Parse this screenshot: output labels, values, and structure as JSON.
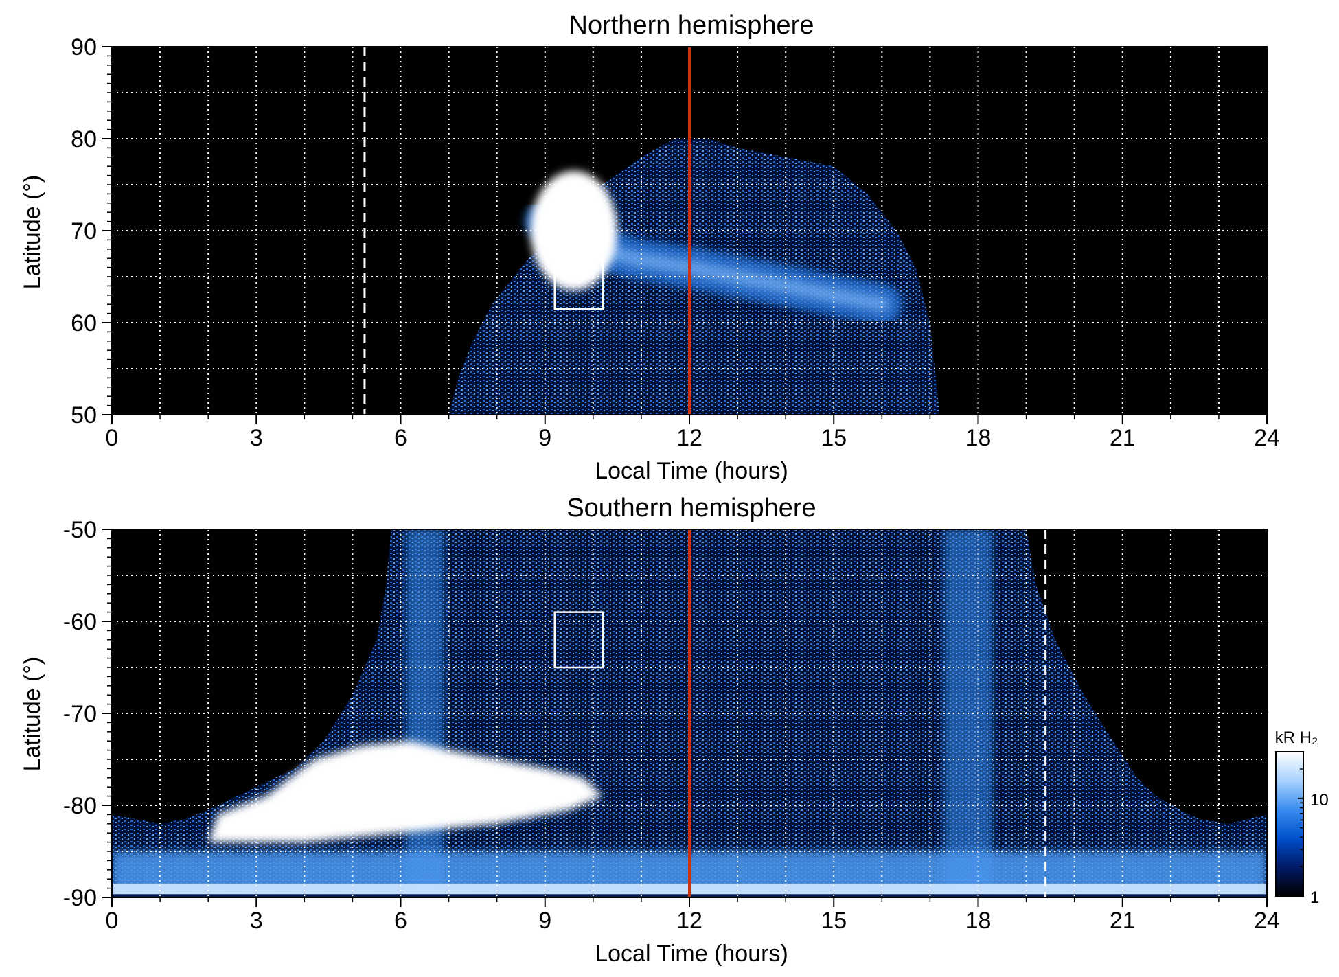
{
  "chart_data": [
    {
      "type": "heatmap",
      "title": "Northern hemisphere",
      "xlabel": "Local Time (hours)",
      "ylabel": "Latitude (°)",
      "xlim": [
        0,
        24
      ],
      "ylim": [
        50,
        90
      ],
      "x_ticks": [
        "0",
        "3",
        "6",
        "9",
        "12",
        "15",
        "18",
        "21",
        "24"
      ],
      "y_ticks": [
        "50",
        "60",
        "70",
        "80",
        "90"
      ],
      "grid": true,
      "grid_x_step": 1,
      "grid_y_step": 5,
      "coverage": [
        [
          7.0,
          50
        ],
        [
          7.2,
          54
        ],
        [
          7.5,
          58
        ],
        [
          7.9,
          62
        ],
        [
          8.5,
          66
        ],
        [
          9.0,
          69
        ],
        [
          9.5,
          73
        ],
        [
          10.2,
          75
        ],
        [
          11.0,
          78
        ],
        [
          11.7,
          80
        ],
        [
          12.4,
          80
        ],
        [
          13.0,
          79
        ],
        [
          14.0,
          78
        ],
        [
          15.0,
          77
        ],
        [
          15.7,
          74
        ],
        [
          16.3,
          70
        ],
        [
          16.7,
          66
        ],
        [
          17.0,
          60
        ],
        [
          17.1,
          55
        ],
        [
          17.2,
          50
        ]
      ],
      "bright_oval": {
        "lt": [
          9.0,
          9.8,
          10.2,
          10.8,
          12.0,
          13.0,
          14.0,
          15.0,
          16.0
        ],
        "lat": [
          71,
          68,
          68,
          67,
          66,
          65,
          64,
          63,
          62
        ]
      },
      "bright_spot": {
        "lt_center": 9.6,
        "lat_center": 70.0,
        "lt_radius": 0.9,
        "lat_radius": 6.5
      },
      "box": {
        "lt": [
          9.2,
          10.2
        ],
        "lat": [
          61.5,
          67
        ]
      },
      "noon_line_lt": 12.0,
      "dashed_line_lt": 5.25,
      "noon_line_color": "#cc3311"
    },
    {
      "type": "heatmap",
      "title": "Southern hemisphere",
      "xlabel": "Local Time (hours)",
      "ylabel": "Latitude (°)",
      "xlim": [
        0,
        24
      ],
      "ylim": [
        -90,
        -50
      ],
      "x_ticks": [
        "0",
        "3",
        "6",
        "9",
        "12",
        "15",
        "18",
        "21",
        "24"
      ],
      "y_ticks": [
        "-90",
        "-80",
        "-70",
        "-60",
        "-50"
      ],
      "grid": true,
      "grid_x_step": 1,
      "grid_y_step": 5,
      "coverage": [
        [
          0.0,
          -81
        ],
        [
          0.5,
          -81.5
        ],
        [
          1.0,
          -82
        ],
        [
          1.5,
          -81.5
        ],
        [
          2.0,
          -80.5
        ],
        [
          2.6,
          -79
        ],
        [
          3.2,
          -77.5
        ],
        [
          3.8,
          -76
        ],
        [
          4.4,
          -73
        ],
        [
          5.0,
          -68
        ],
        [
          5.5,
          -62
        ],
        [
          5.7,
          -56
        ],
        [
          5.8,
          -50
        ],
        [
          19.0,
          -50
        ],
        [
          19.2,
          -56
        ],
        [
          19.6,
          -62
        ],
        [
          20.2,
          -68
        ],
        [
          20.8,
          -73
        ],
        [
          21.3,
          -77
        ],
        [
          21.7,
          -79
        ],
        [
          22.2,
          -80.5
        ],
        [
          22.6,
          -81.5
        ],
        [
          23.2,
          -82
        ],
        [
          24.0,
          -81
        ]
      ],
      "saturated_region": [
        [
          2.2,
          -81
        ],
        [
          3.2,
          -79
        ],
        [
          4.2,
          -75
        ],
        [
          5.2,
          -73.5
        ],
        [
          6.2,
          -73
        ],
        [
          7.0,
          -74
        ],
        [
          8.0,
          -75
        ],
        [
          9.0,
          -76
        ],
        [
          9.8,
          -77
        ],
        [
          10.2,
          -79
        ],
        [
          9.5,
          -80.5
        ],
        [
          8.0,
          -82
        ],
        [
          6.0,
          -83
        ],
        [
          4.0,
          -84
        ],
        [
          2.0,
          -84
        ]
      ],
      "bright_bands": [
        {
          "lt": 6.5,
          "half_width": 0.4
        },
        {
          "lt": 17.8,
          "half_width": 0.5
        }
      ],
      "box": {
        "lt": [
          9.2,
          10.2
        ],
        "lat": [
          -65,
          -59
        ]
      },
      "noon_line_lt": 12.0,
      "dashed_line_lt": 19.4,
      "noon_line_color": "#cc3311"
    }
  ],
  "colorbar": {
    "label": "kR H₂",
    "scale": "log",
    "range": [
      1,
      30
    ],
    "ticks": [
      {
        "value": 1,
        "label": "1"
      },
      {
        "value": 10,
        "label": "10"
      }
    ],
    "colors": [
      "#000000",
      "#001a66",
      "#0050cc",
      "#3a8cf0",
      "#a8d2ff",
      "#ffffff"
    ]
  }
}
